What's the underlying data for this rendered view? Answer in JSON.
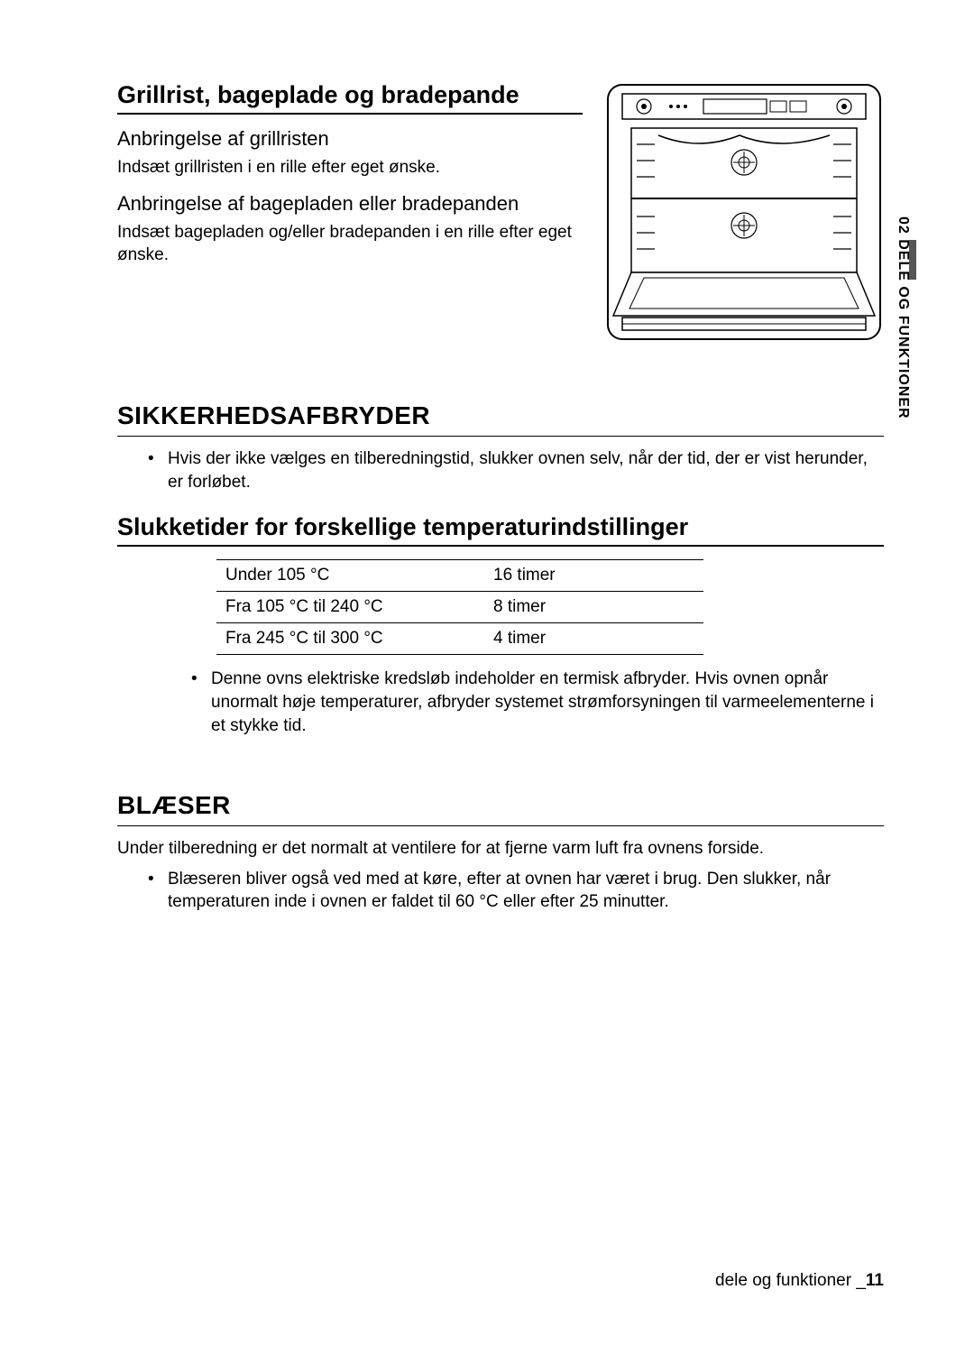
{
  "section1": {
    "title": "Grillrist, bageplade og bradepande",
    "sub1_title": "Anbringelse af grillristen",
    "sub1_body": "Indsæt grillristen i en rille efter eget ønske.",
    "sub2_title": "Anbringelse af bagepladen eller bradepanden",
    "sub2_body": "Indsæt bagepladen og/eller bradepanden i en rille efter eget ønske."
  },
  "section2": {
    "title": "SIKKERHEDSAFBRYDER",
    "bullet": "Hvis der ikke vælges en tilberedningstid, slukker ovnen selv, når der tid, der er vist herunder, er forløbet.",
    "sub_title": "Slukketider for forskellige temperaturindstillinger",
    "table": {
      "rows": [
        [
          "Under 105 °C",
          "16 timer"
        ],
        [
          "Fra 105 °C til 240 °C",
          "8 timer"
        ],
        [
          "Fra 245 °C til 300 °C",
          "4 timer"
        ]
      ]
    },
    "note": "Denne ovns elektriske kredsløb indeholder en termisk afbryder. Hvis ovnen opnår unormalt høje temperaturer, afbryder systemet strømforsyningen til varmeelementerne i et stykke tid."
  },
  "section3": {
    "title": "BLÆSER",
    "body": "Under tilberedning er det normalt at ventilere for at fjerne varm luft fra ovnens forside.",
    "bullet": "Blæseren bliver også ved med at køre, efter at ovnen har været i brug. Den slukker, når temperaturen inde i ovnen er faldet til 60 °C eller efter 25 minutter."
  },
  "side_tab": "02 DELE OG FUNKTIONER",
  "footer": {
    "text": "dele og funktioner _",
    "page": "11"
  },
  "oven_diagram": {
    "stroke": "#000000",
    "fill": "#ffffff",
    "rack_count": 5
  }
}
